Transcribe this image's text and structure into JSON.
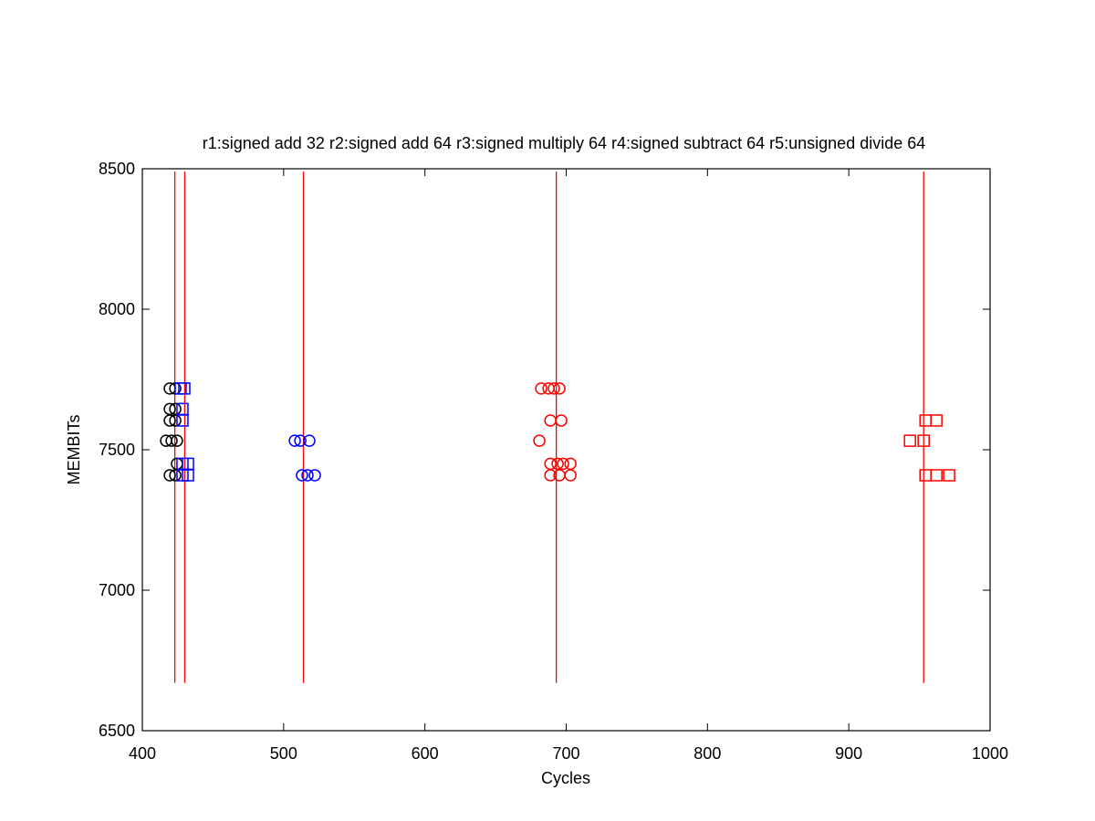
{
  "chart_data": {
    "type": "scatter",
    "title": "r1:signed add 32 r2:signed add 64 r3:signed multiply 64 r4:signed subtract 64 r5:unsigned divide 64",
    "xlabel": "Cycles",
    "ylabel": "MEMBITs",
    "xlim": [
      400,
      1000
    ],
    "xticks": [
      400,
      500,
      600,
      700,
      800,
      900,
      1000
    ],
    "ylim": [
      6500,
      8500
    ],
    "yticks": [
      6500,
      7000,
      7500,
      8000,
      8500
    ],
    "vlines": {
      "color": "#ff0000",
      "x": [
        423,
        430,
        514,
        693,
        953
      ],
      "ylim": [
        6670,
        8490
      ]
    },
    "series": [
      {
        "color": "#000000",
        "marker": "circle",
        "x": [
          419.4,
          423.3,
          419.4,
          423.3,
          419.4,
          423.3,
          416.8,
          420.7,
          424.5,
          424.5,
          419.4,
          423.3
        ],
        "values": [
          7718,
          7718,
          7645,
          7645,
          7604,
          7604,
          7532,
          7532,
          7532,
          7450,
          7409,
          7409
        ]
      },
      {
        "color": "#0000ff",
        "marker": "square",
        "x": [
          427.1,
          429.7,
          428.4,
          428.4,
          428.4,
          432.3,
          428.4,
          432.3
        ],
        "values": [
          7718,
          7718,
          7645,
          7604,
          7450,
          7450,
          7409,
          7409
        ]
      },
      {
        "color": "#0000ff",
        "marker": "circle",
        "x": [
          507.9,
          511.8,
          518.2,
          513,
          516.9,
          522.1
        ],
        "values": [
          7532,
          7532,
          7532,
          7409,
          7409,
          7409
        ]
      },
      {
        "color": "#ff0000",
        "marker": "circle",
        "x": [
          682.3,
          687.5,
          691.3,
          695.2,
          688.8,
          696.5,
          681,
          688.8,
          693.9,
          697.8,
          703,
          688.8,
          695.2,
          703
        ],
        "values": [
          7718,
          7718,
          7718,
          7718,
          7604,
          7604,
          7532,
          7450,
          7450,
          7450,
          7450,
          7409,
          7409,
          7409
        ]
      },
      {
        "color": "#ff0000",
        "marker": "square",
        "x": [
          954.3,
          962,
          943.3,
          953,
          954.3,
          962,
          971
        ],
        "values": [
          7604,
          7604,
          7532,
          7532,
          7409,
          7409,
          7409
        ]
      }
    ]
  }
}
